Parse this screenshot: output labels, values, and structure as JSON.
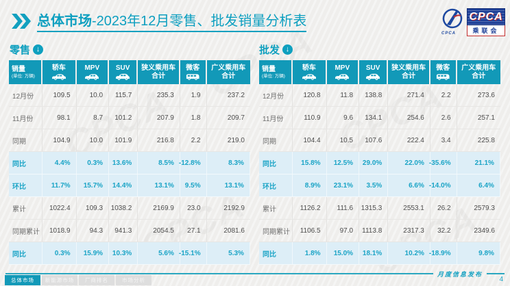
{
  "page": {
    "title_bold": "总体市场",
    "title_rest": "-2023年12月零售、批发销量分析表",
    "footer_label": "月度信息发布",
    "page_number": "4",
    "accent_color": "#1299b8",
    "highlight_row_color": "#ddeef7"
  },
  "logo": {
    "acronym": "CPCA",
    "cn_name": "乘联会"
  },
  "table_header": {
    "sales_label": "销量",
    "sales_unit": "(单位: 万辆)",
    "arrow_symbol": "↓",
    "columns": [
      {
        "label": "轿车",
        "label2": "",
        "icon": "car"
      },
      {
        "label": "MPV",
        "label2": "",
        "icon": "mpv"
      },
      {
        "label": "SUV",
        "label2": "",
        "icon": "suv"
      },
      {
        "label": "狭义乘用车",
        "label2": "合计",
        "icon": ""
      },
      {
        "label": "微客",
        "label2": "",
        "icon": "van"
      },
      {
        "label": "广义乘用车",
        "label2": "合计",
        "icon": ""
      }
    ]
  },
  "retail": {
    "section_label": "零售",
    "rows": [
      {
        "label": "12月份",
        "highlight": false,
        "values": [
          "109.5",
          "10.0",
          "115.7",
          "235.3",
          "1.9",
          "237.2"
        ]
      },
      {
        "label": "11月份",
        "highlight": false,
        "values": [
          "98.1",
          "8.7",
          "101.2",
          "207.9",
          "1.8",
          "209.7"
        ]
      },
      {
        "label": "同期",
        "highlight": false,
        "values": [
          "104.9",
          "10.0",
          "101.9",
          "216.8",
          "2.2",
          "219.0"
        ]
      },
      {
        "label": "同比",
        "highlight": true,
        "values": [
          "4.4%",
          "0.3%",
          "13.6%",
          "8.5%",
          "-12.8%",
          "8.3%"
        ]
      },
      {
        "label": "环比",
        "highlight": true,
        "values": [
          "11.7%",
          "15.7%",
          "14.4%",
          "13.1%",
          "9.5%",
          "13.1%"
        ]
      },
      {
        "label": "累计",
        "highlight": false,
        "values": [
          "1022.4",
          "109.3",
          "1038.2",
          "2169.9",
          "23.0",
          "2192.9"
        ]
      },
      {
        "label": "同期累计",
        "highlight": false,
        "values": [
          "1018.9",
          "94.3",
          "941.3",
          "2054.5",
          "27.1",
          "2081.6"
        ]
      },
      {
        "label": "同比",
        "highlight": true,
        "values": [
          "0.3%",
          "15.9%",
          "10.3%",
          "5.6%",
          "-15.1%",
          "5.3%"
        ]
      }
    ]
  },
  "wholesale": {
    "section_label": "批发",
    "rows": [
      {
        "label": "12月份",
        "highlight": false,
        "values": [
          "120.8",
          "11.8",
          "138.8",
          "271.4",
          "2.2",
          "273.6"
        ]
      },
      {
        "label": "11月份",
        "highlight": false,
        "values": [
          "110.9",
          "9.6",
          "134.1",
          "254.6",
          "2.6",
          "257.1"
        ]
      },
      {
        "label": "同期",
        "highlight": false,
        "values": [
          "104.4",
          "10.5",
          "107.6",
          "222.4",
          "3.4",
          "225.8"
        ]
      },
      {
        "label": "同比",
        "highlight": true,
        "values": [
          "15.8%",
          "12.5%",
          "29.0%",
          "22.0%",
          "-35.6%",
          "21.1%"
        ]
      },
      {
        "label": "环比",
        "highlight": true,
        "values": [
          "8.9%",
          "23.1%",
          "3.5%",
          "6.6%",
          "-14.0%",
          "6.4%"
        ]
      },
      {
        "label": "累计",
        "highlight": false,
        "values": [
          "1126.2",
          "111.6",
          "1315.3",
          "2553.1",
          "26.2",
          "2579.3"
        ]
      },
      {
        "label": "同期累计",
        "highlight": false,
        "values": [
          "1106.5",
          "97.0",
          "1113.8",
          "2317.3",
          "32.2",
          "2349.6"
        ]
      },
      {
        "label": "同比",
        "highlight": true,
        "values": [
          "1.8%",
          "15.0%",
          "18.1%",
          "10.2%",
          "-18.9%",
          "9.8%"
        ]
      }
    ]
  },
  "tabs": [
    {
      "label": "总体市场",
      "active": true
    },
    {
      "label": "新能源市场",
      "active": false
    },
    {
      "label": "厂商排名",
      "active": false
    },
    {
      "label": "市场分析",
      "active": false
    }
  ]
}
